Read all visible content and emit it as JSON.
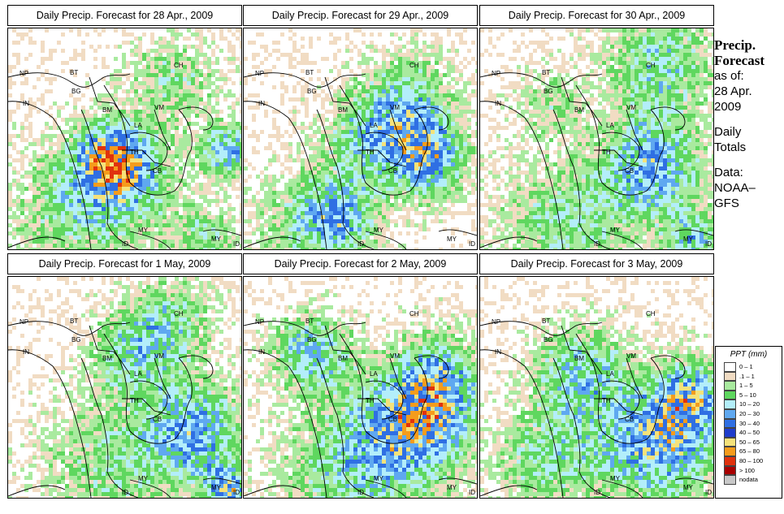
{
  "panels": [
    {
      "title": "Daily Precip. Forecast for  28 Apr., 2009"
    },
    {
      "title": "Daily Precip. Forecast for  29 Apr., 2009"
    },
    {
      "title": "Daily Precip. Forecast for  30 Apr., 2009"
    },
    {
      "title": "Daily Precip. Forecast for  1 May, 2009"
    },
    {
      "title": "Daily Precip. Forecast for  2 May, 2009"
    },
    {
      "title": "Daily Precip. Forecast for  3 May, 2009"
    }
  ],
  "country_labels": [
    "NP",
    "BT",
    "BG",
    "IN",
    "BM",
    "CH",
    "VM",
    "LA",
    "TH",
    "CB",
    "MY",
    "ID"
  ],
  "sidebar": {
    "line1": "Precip.",
    "line2": "Forecast",
    "line3": "as of:",
    "line4": "28 Apr.",
    "line5": "2009",
    "line6": "Daily",
    "line7": "Totals",
    "line8": "Data:",
    "line9": "NOAA–",
    "line10": "GFS"
  },
  "legend": {
    "title": "PPT (mm)",
    "items": [
      {
        "label": "0 – 1",
        "color": "#ffffff"
      },
      {
        "label": ".1 – 1",
        "color": "#f1dcc3"
      },
      {
        "label": "1 – 5",
        "color": "#a9ea9f"
      },
      {
        "label": "5 – 10",
        "color": "#5fd75f"
      },
      {
        "label": "10 – 20",
        "color": "#b3eefa"
      },
      {
        "label": "20 – 30",
        "color": "#5fa8f0"
      },
      {
        "label": "30 – 40",
        "color": "#2f6fe3"
      },
      {
        "label": "40 – 50",
        "color": "#1f3dcc"
      },
      {
        "label": "50 – 65",
        "color": "#f5e27a"
      },
      {
        "label": "65 – 80",
        "color": "#f59c1c"
      },
      {
        "label": "80 – 100",
        "color": "#e0320e"
      },
      {
        "label": "> 100",
        "color": "#a80000"
      },
      {
        "label": "nodata",
        "color": "#c8c8c8"
      }
    ]
  }
}
